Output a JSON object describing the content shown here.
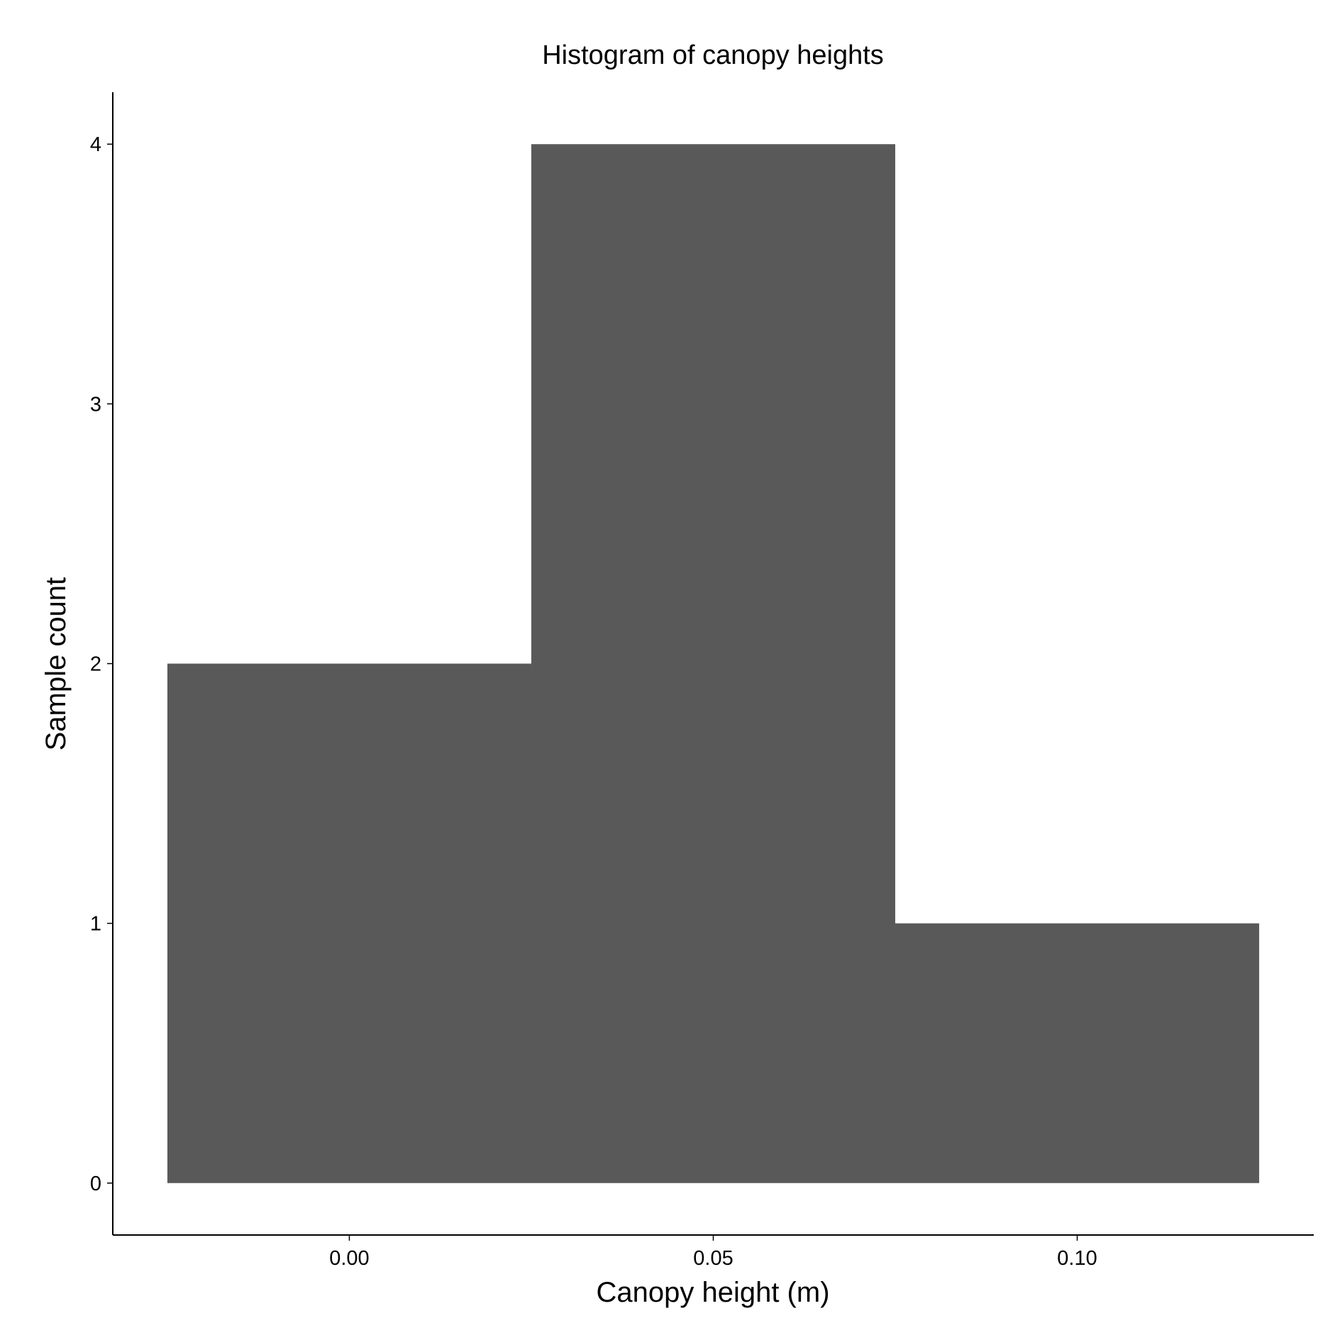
{
  "chart_data": {
    "type": "bar",
    "title": "Histogram of canopy heights",
    "xlabel": "Canopy height (m)",
    "ylabel": "Sample count",
    "bins": [
      {
        "x0": -0.025,
        "x1": 0.025,
        "count": 2
      },
      {
        "x0": 0.025,
        "x1": 0.075,
        "count": 4
      },
      {
        "x0": 0.075,
        "x1": 0.125,
        "count": 1
      }
    ],
    "xlim": [
      -0.0325,
      0.1325
    ],
    "ylim": [
      -0.2,
      4.2
    ],
    "xticks": [
      0.0,
      0.05,
      0.1
    ],
    "xtick_labels": [
      "0.00",
      "0.05",
      "0.10"
    ],
    "yticks": [
      0,
      1,
      2,
      3,
      4
    ],
    "ytick_labels": [
      "0",
      "1",
      "2",
      "3",
      "4"
    ],
    "grid": false,
    "legend": "none",
    "colors": {
      "bar": "#595959",
      "axis": "#000000",
      "background": "#ffffff"
    }
  }
}
